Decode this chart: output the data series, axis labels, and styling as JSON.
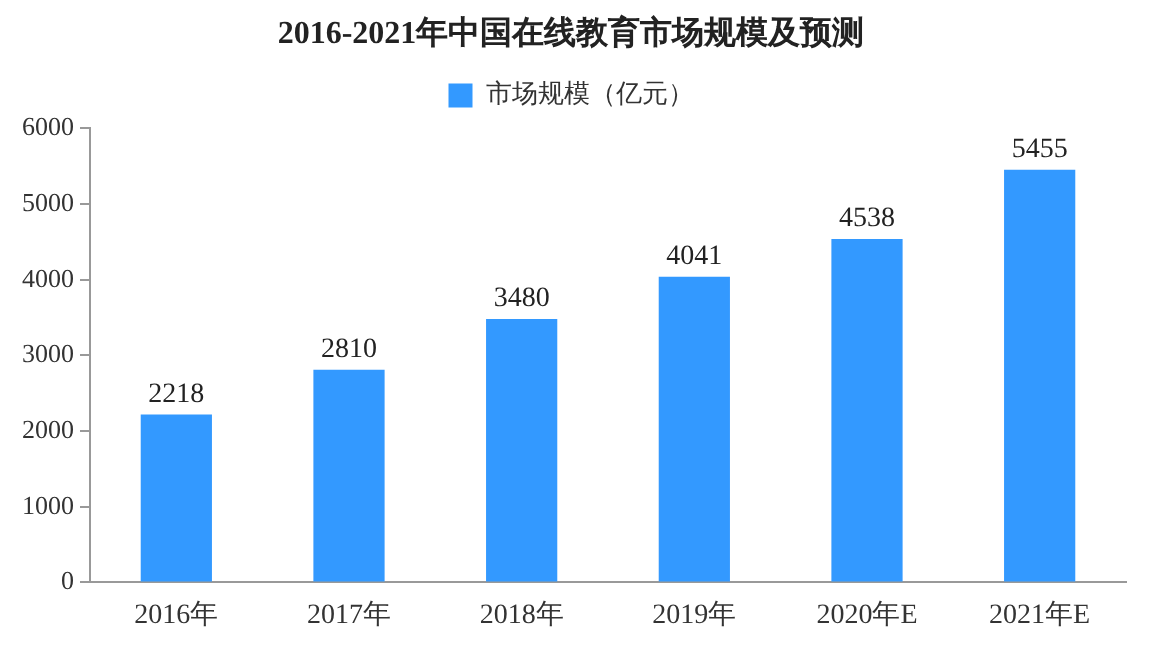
{
  "chart_data": {
    "type": "bar",
    "title": "2016-2021年中国在线教育市场规模及预测",
    "categories": [
      "2016年",
      "2017年",
      "2018年",
      "2019年",
      "2020年E",
      "2021年E"
    ],
    "series": [
      {
        "name": "市场规模（亿元）",
        "color": "#3399ff",
        "values": [
          2218,
          2810,
          3480,
          4041,
          4538,
          5455
        ]
      }
    ],
    "ylim": [
      0,
      6000
    ],
    "yticks": [
      0,
      1000,
      2000,
      3000,
      4000,
      5000,
      6000
    ],
    "grid": false,
    "legend": "top",
    "data_labels": true
  }
}
